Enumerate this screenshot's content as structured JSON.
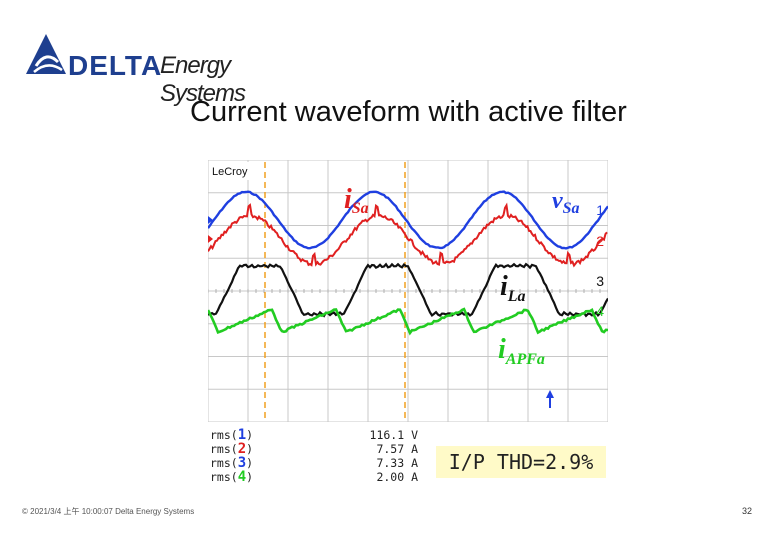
{
  "logo": {
    "brand": "DELTA",
    "suffix": "Energy Systems"
  },
  "title": "Current waveform with active filter",
  "scope": {
    "vendor": "LeCroy",
    "labels": {
      "isa": "i",
      "isa_sub": "Sa",
      "vsa": "v",
      "vsa_sub": "Sa",
      "ila": "i",
      "ila_sub": "La",
      "iapf": "i",
      "iapf_sub": "APFa"
    },
    "channels": [
      "1",
      "2",
      "3",
      "4"
    ],
    "colors": {
      "ch1": "#1f3fe0",
      "ch2": "#e02020",
      "ch3": "#111111",
      "ch4": "#22cc22",
      "marker": "#f0a020"
    }
  },
  "readout": [
    {
      "label": "rms(",
      "ch": "1",
      "close": ")",
      "value": "116.1 V",
      "color": "#1f3fe0"
    },
    {
      "label": "rms(",
      "ch": "2",
      "close": ")",
      "value": "7.57 A",
      "color": "#e02020"
    },
    {
      "label": "rms(",
      "ch": "3",
      "close": ")",
      "value": "7.33 A",
      "color": "#1f3fe0"
    },
    {
      "label": "rms(",
      "ch": "4",
      "close": ")",
      "value": "2.00 A",
      "color": "#22cc22"
    }
  ],
  "thd": "I/P THD=2.9%",
  "footer": "© 2021/3/4 上午 10:00:07 Delta Energy Systems",
  "page_number": "32"
}
